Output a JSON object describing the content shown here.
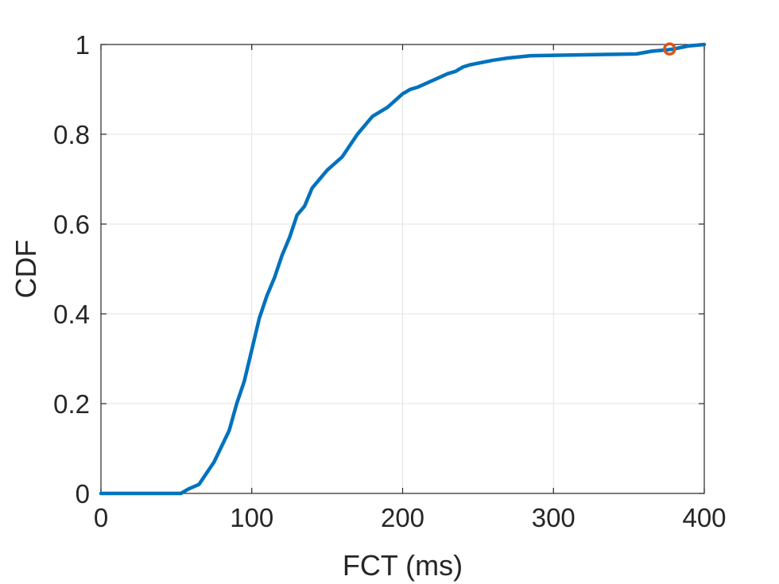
{
  "chart_data": {
    "type": "line",
    "title": "",
    "xlabel": "FCT (ms)",
    "ylabel": "CDF",
    "xlim": [
      0,
      400
    ],
    "ylim": [
      0,
      1
    ],
    "xticks": [
      0,
      100,
      200,
      300,
      400
    ],
    "yticks": [
      0,
      0.2,
      0.4,
      0.6,
      0.8,
      1
    ],
    "xtick_labels": [
      "0",
      "100",
      "200",
      "300",
      "400"
    ],
    "ytick_labels": [
      "0",
      "0.2",
      "0.4",
      "0.6",
      "0.8",
      "1"
    ],
    "grid": true,
    "colors": {
      "line": "#0072BD",
      "marker": "#D95319",
      "grid": "#e3e3e3",
      "axis": "#262626"
    },
    "series": [
      {
        "x": [
          0,
          53,
          58,
          65,
          75,
          85,
          90,
          95,
          100,
          105,
          110,
          115,
          120,
          125,
          130,
          135,
          140,
          145,
          150,
          160,
          170,
          175,
          180,
          190,
          200,
          205,
          210,
          220,
          230,
          235,
          240,
          245,
          260,
          270,
          285,
          300,
          320,
          340,
          355,
          365,
          375,
          380,
          390,
          400
        ],
        "y": [
          0,
          0,
          0.01,
          0.02,
          0.07,
          0.14,
          0.2,
          0.25,
          0.32,
          0.39,
          0.44,
          0.48,
          0.53,
          0.57,
          0.62,
          0.64,
          0.68,
          0.7,
          0.72,
          0.75,
          0.8,
          0.82,
          0.84,
          0.86,
          0.89,
          0.9,
          0.905,
          0.92,
          0.935,
          0.94,
          0.95,
          0.955,
          0.965,
          0.97,
          0.975,
          0.976,
          0.977,
          0.978,
          0.979,
          0.985,
          0.988,
          0.99,
          0.997,
          1
        ]
      }
    ],
    "markers": [
      {
        "x": 377,
        "y": 0.99
      }
    ]
  }
}
